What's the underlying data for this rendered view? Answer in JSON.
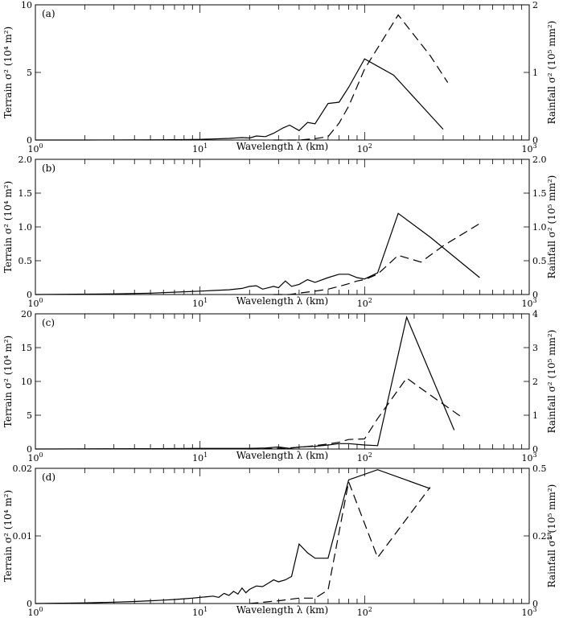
{
  "chart_data": [
    {
      "type": "line",
      "panel_label": "(a)",
      "xlabel": "Wavelength λ (km)",
      "xscale": "log",
      "xlim": [
        1,
        1000
      ],
      "x_ticks": [
        "10^0",
        "10^1",
        "10^2",
        "10^3"
      ],
      "ylabel_left": "Terrain σ² (10⁴ m²)",
      "ylim_left": [
        0,
        10
      ],
      "yticks_left": [
        "0",
        "5",
        "10"
      ],
      "ylabel_right": "Rainfall σ² (10⁵ mm²)",
      "ylim_right": [
        0,
        2
      ],
      "yticks_right": [
        "0",
        "1",
        "2"
      ],
      "series": [
        {
          "style": "solid",
          "axis": "left",
          "x": [
            1,
            2,
            4,
            6,
            8,
            10,
            12,
            15,
            18,
            20,
            22,
            25,
            28,
            32,
            35,
            40,
            45,
            50,
            60,
            70,
            80,
            100,
            150,
            300
          ],
          "y": [
            0,
            0,
            0.01,
            0.02,
            0.03,
            0.05,
            0.08,
            0.12,
            0.18,
            0.15,
            0.3,
            0.25,
            0.5,
            0.9,
            1.1,
            0.7,
            1.3,
            1.2,
            2.7,
            2.8,
            3.9,
            6.0,
            4.8,
            0.8
          ]
        },
        {
          "style": "dashed",
          "axis": "right",
          "x": [
            28,
            40,
            50,
            60,
            70,
            80,
            100,
            160,
            250,
            320
          ],
          "y": [
            0,
            0,
            0.02,
            0.05,
            0.25,
            0.5,
            1.05,
            1.85,
            1.25,
            0.85
          ]
        }
      ]
    },
    {
      "type": "line",
      "panel_label": "(b)",
      "xlabel": "Wavelength λ (km)",
      "xscale": "log",
      "xlim": [
        1,
        1000
      ],
      "x_ticks": [
        "10^0",
        "10^1",
        "10^2",
        "10^3"
      ],
      "ylabel_left": "Terrain σ² (10⁴ m²)",
      "ylim_left": [
        0,
        2
      ],
      "yticks_left": [
        "0",
        "0.5",
        "1.0",
        "1.5",
        "2.0"
      ],
      "ylabel_right": "Rainfall σ² (10⁵ mm²)",
      "ylim_right": [
        0,
        2
      ],
      "yticks_right": [
        "0",
        "0.5",
        "1.0",
        "1.5",
        "2.0"
      ],
      "series": [
        {
          "style": "solid",
          "axis": "left",
          "x": [
            1,
            3,
            5,
            8,
            10,
            12,
            15,
            18,
            20,
            22,
            24,
            26,
            28,
            30,
            33,
            36,
            40,
            45,
            50,
            60,
            70,
            80,
            90,
            100,
            120,
            160,
            250,
            500
          ],
          "y": [
            0,
            0.01,
            0.02,
            0.04,
            0.05,
            0.06,
            0.07,
            0.09,
            0.12,
            0.13,
            0.08,
            0.1,
            0.12,
            0.1,
            0.2,
            0.12,
            0.15,
            0.22,
            0.18,
            0.25,
            0.3,
            0.3,
            0.25,
            0.23,
            0.32,
            1.2,
            0.85,
            0.25
          ]
        },
        {
          "style": "dashed",
          "axis": "right",
          "x": [
            28,
            35,
            40,
            50,
            60,
            70,
            80,
            90,
            100,
            120,
            160,
            220,
            300,
            500
          ],
          "y": [
            0,
            0,
            0.02,
            0.05,
            0.08,
            0.12,
            0.16,
            0.2,
            0.22,
            0.3,
            0.58,
            0.48,
            0.72,
            1.05
          ]
        }
      ]
    },
    {
      "type": "line",
      "panel_label": "(c)",
      "xlabel": "Wavelength λ (km)",
      "xscale": "log",
      "xlim": [
        1,
        1000
      ],
      "x_ticks": [
        "10^0",
        "10^1",
        "10^2",
        "10^3"
      ],
      "ylabel_left": "Terrain σ² (10⁴ m²)",
      "ylim_left": [
        0,
        20
      ],
      "yticks_left": [
        "0",
        "5",
        "10",
        "15",
        "20"
      ],
      "ylabel_right": "Rainfall σ² (10⁵ mm²)",
      "ylim_right": [
        0,
        4
      ],
      "yticks_right": [
        "0",
        "1",
        "2",
        "3",
        "4"
      ],
      "series": [
        {
          "style": "solid",
          "axis": "left",
          "x": [
            1,
            5,
            10,
            15,
            20,
            25,
            30,
            35,
            40,
            50,
            60,
            70,
            80,
            100,
            120,
            180,
            350
          ],
          "y": [
            0,
            0.05,
            0.1,
            0.1,
            0.1,
            0.15,
            0.3,
            0.1,
            0.3,
            0.4,
            0.6,
            0.8,
            0.8,
            0.6,
            0.5,
            19.5,
            2.8
          ]
        },
        {
          "style": "dashed",
          "axis": "right",
          "x": [
            20,
            30,
            40,
            50,
            60,
            70,
            80,
            100,
            120,
            180,
            250,
            400
          ],
          "y": [
            0,
            0.02,
            0.05,
            0.1,
            0.15,
            0.2,
            0.28,
            0.3,
            0.9,
            2.1,
            1.6,
            0.9
          ]
        }
      ]
    },
    {
      "type": "line",
      "panel_label": "(d)",
      "xlabel": "Wavelength λ (km)",
      "xscale": "log",
      "xlim": [
        1,
        1000
      ],
      "x_ticks": [
        "10^0",
        "10^1",
        "10^2",
        "10^3"
      ],
      "ylabel_left": "Terrain σ² (10⁴ m²)",
      "ylim_left": [
        0,
        0.02
      ],
      "yticks_left": [
        "0",
        "0.01",
        "0.02"
      ],
      "ylabel_right": "Rainfall σ² (10⁵ mm²)",
      "ylim_right": [
        0,
        0.5
      ],
      "yticks_right": [
        "0",
        "0.25",
        "0.5"
      ],
      "series": [
        {
          "style": "solid",
          "axis": "left",
          "x": [
            1,
            2,
            3,
            4,
            5,
            6,
            7,
            8,
            9,
            10,
            11,
            12,
            13,
            14,
            15,
            16,
            17,
            18,
            19,
            20,
            22,
            24,
            26,
            28,
            30,
            33,
            36,
            40,
            45,
            50,
            60,
            80,
            120,
            250
          ],
          "y": [
            0,
            0.0001,
            0.0002,
            0.0003,
            0.0004,
            0.0005,
            0.0006,
            0.0007,
            0.0008,
            0.0009,
            0.001,
            0.0011,
            0.0009,
            0.0015,
            0.0012,
            0.0018,
            0.0014,
            0.0023,
            0.0016,
            0.0021,
            0.0026,
            0.0025,
            0.003,
            0.0035,
            0.0032,
            0.0035,
            0.004,
            0.0088,
            0.0075,
            0.0067,
            0.0067,
            0.0183,
            0.0198,
            0.017
          ]
        },
        {
          "style": "dashed",
          "axis": "right",
          "x": [
            20,
            30,
            40,
            50,
            60,
            80,
            120,
            250
          ],
          "y": [
            0,
            0.01,
            0.02,
            0.02,
            0.05,
            0.45,
            0.17,
            0.43
          ]
        }
      ]
    }
  ]
}
